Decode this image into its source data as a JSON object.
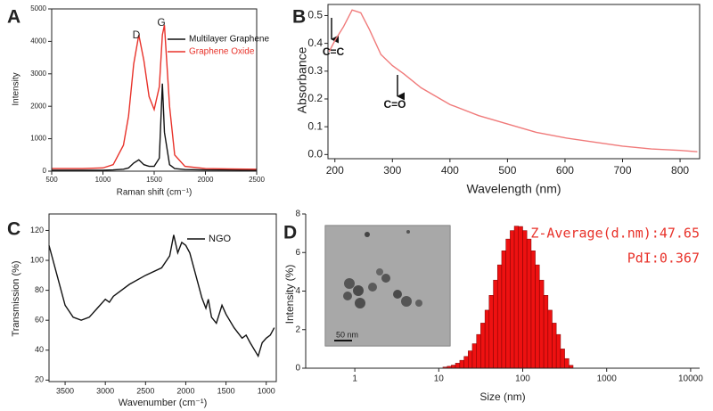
{
  "chart_data": [
    {
      "type": "line",
      "panel_label": "A",
      "xlabel": "Raman shift (cm⁻¹)",
      "ylabel": "Intensity",
      "annotations": [
        "D",
        "G"
      ],
      "x": [
        500,
        800,
        1000,
        1100,
        1200,
        1250,
        1300,
        1350,
        1400,
        1450,
        1500,
        1550,
        1580,
        1600,
        1650,
        1700,
        1800,
        2000,
        2500
      ],
      "series": [
        {
          "name": "Multilayer Graphene",
          "color": "#111111",
          "values": [
            30,
            30,
            30,
            40,
            60,
            100,
            250,
            350,
            200,
            150,
            150,
            400,
            2700,
            1200,
            200,
            80,
            50,
            40,
            30
          ]
        },
        {
          "name": "Graphene Oxide",
          "color": "#e8322a",
          "values": [
            80,
            80,
            100,
            200,
            800,
            1700,
            3300,
            4200,
            3400,
            2300,
            1900,
            2600,
            4200,
            4500,
            2000,
            500,
            150,
            80,
            60
          ]
        }
      ],
      "xlim": [
        500,
        2500
      ],
      "xticks": [
        500,
        1000,
        1500,
        2000,
        2500
      ],
      "ylim": [
        0,
        5000
      ],
      "yticks": [
        0,
        1000,
        2000,
        3000,
        4000,
        5000
      ]
    },
    {
      "type": "line",
      "panel_label": "B",
      "xlabel": "Wavelength (nm)",
      "ylabel": "Absorbance",
      "annotations": [
        "C=C",
        "C=O"
      ],
      "x": [
        190,
        200,
        215,
        230,
        245,
        260,
        280,
        300,
        320,
        350,
        400,
        450,
        500,
        550,
        600,
        650,
        700,
        750,
        800,
        830
      ],
      "series": [
        {
          "color": "#f07a7a",
          "values": [
            0.37,
            0.41,
            0.46,
            0.52,
            0.51,
            0.45,
            0.36,
            0.32,
            0.29,
            0.24,
            0.18,
            0.14,
            0.11,
            0.08,
            0.06,
            0.045,
            0.03,
            0.02,
            0.015,
            0.01
          ]
        }
      ],
      "xlim": [
        188,
        834
      ],
      "xticks": [
        200,
        300,
        400,
        500,
        600,
        700,
        800
      ],
      "ylim": [
        -0.015,
        0.54
      ],
      "yticks": [
        {
          "value": 0,
          "label": "0.0"
        },
        0.1,
        0.2,
        0.3,
        0.4,
        0.5
      ]
    },
    {
      "type": "line",
      "panel_label": "C",
      "xlabel": "Wavenumber (cm⁻¹)",
      "ylabel": "Transmission (%)",
      "x": [
        3700,
        3600,
        3500,
        3400,
        3300,
        3200,
        3100,
        3000,
        2950,
        2900,
        2700,
        2500,
        2300,
        2200,
        2150,
        2100,
        2050,
        2000,
        1950,
        1900,
        1850,
        1800,
        1750,
        1720,
        1680,
        1620,
        1550,
        1500,
        1400,
        1300,
        1250,
        1200,
        1100,
        1050,
        1000,
        950,
        900
      ],
      "series": [
        {
          "name": "NGO",
          "color": "#111111",
          "values": [
            110,
            90,
            70,
            62,
            60,
            62,
            68,
            74,
            72,
            76,
            84,
            90,
            95,
            103,
            117,
            105,
            112,
            110,
            105,
            95,
            85,
            75,
            68,
            74,
            62,
            58,
            70,
            64,
            55,
            48,
            50,
            45,
            36,
            45,
            48,
            50,
            55
          ]
        }
      ],
      "xlim": [
        3700,
        875
      ],
      "xticks": [
        3500,
        3000,
        2500,
        2000,
        1500,
        1000
      ],
      "ylim": [
        19,
        131
      ],
      "yticks": [
        20,
        40,
        60,
        80,
        100,
        120
      ]
    },
    {
      "type": "histogram",
      "panel_label": "D",
      "xlabel": "Size (nm)",
      "ylabel": "Intensity (%)",
      "annotations": [
        "Z-Average(d.nm):47.65",
        "PdI:0.367"
      ],
      "inset_scale_label": "50 nm",
      "color": "#ee1111",
      "log_x": true,
      "bins": [
        11.2,
        12.6,
        14.1,
        15.8,
        17.8,
        20,
        22.4,
        25.1,
        28.2,
        31.6,
        35.5,
        39.8,
        44.7,
        50.1,
        56.2,
        63.1,
        70.8,
        79.4,
        89.1,
        100,
        112,
        126,
        141,
        158,
        178,
        200,
        224,
        251,
        282,
        316,
        355,
        398
      ],
      "values": [
        0.06,
        0.1,
        0.16,
        0.26,
        0.41,
        0.61,
        0.9,
        1.27,
        1.75,
        2.34,
        3.01,
        3.78,
        4.57,
        5.36,
        6.09,
        6.7,
        7.14,
        7.37,
        7.35,
        7.14,
        6.7,
        6.09,
        5.36,
        4.57,
        3.78,
        3.01,
        2.34,
        1.75,
        1.0,
        0.5,
        0.15
      ],
      "xlim": [
        0.26,
        12800
      ],
      "xticks": [
        1,
        10,
        100,
        1000,
        10000
      ],
      "ylim": [
        0,
        8
      ],
      "yticks": [
        0,
        2,
        4,
        6,
        8
      ]
    }
  ]
}
